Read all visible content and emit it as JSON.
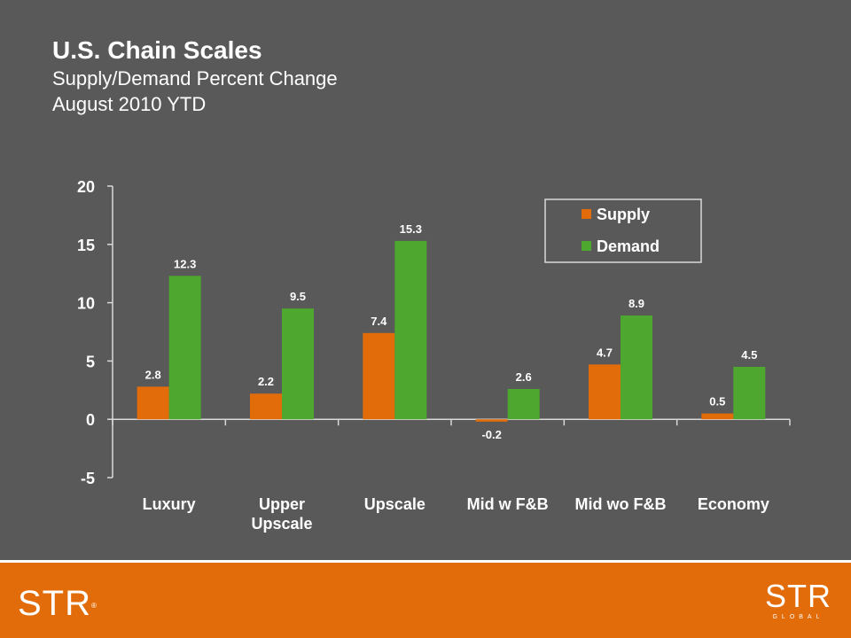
{
  "header": {
    "title": "U.S. Chain Scales",
    "subtitle": "Supply/Demand Percent Change",
    "period": "August 2010 YTD"
  },
  "chart_data": {
    "type": "bar",
    "categories": [
      [
        "Luxury"
      ],
      [
        "Upper",
        "Upscale"
      ],
      [
        "Upscale"
      ],
      [
        "Mid w F&B"
      ],
      [
        "Mid wo F&B"
      ],
      [
        "Economy"
      ]
    ],
    "series": [
      {
        "name": "Supply",
        "color": "#e36c0a",
        "values": [
          2.8,
          2.2,
          7.4,
          -0.2,
          4.7,
          0.5
        ]
      },
      {
        "name": "Demand",
        "color": "#4ea72e",
        "values": [
          12.3,
          9.5,
          15.3,
          2.6,
          8.9,
          4.5
        ]
      }
    ],
    "ylim": [
      -5,
      20
    ],
    "yticks": [
      -5,
      0,
      5,
      10,
      15,
      20
    ],
    "legend_position": "top-right",
    "grid": false
  },
  "footer": {
    "logo_left": "STR",
    "logo_right": "STR",
    "logo_right_sub": "GLOBAL"
  }
}
